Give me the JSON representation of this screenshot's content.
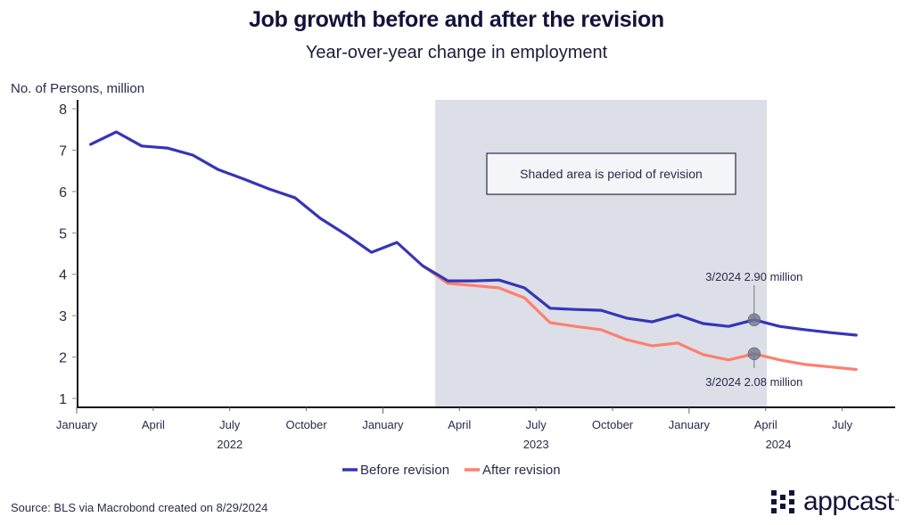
{
  "header": {
    "title": "Job growth before and after the revision",
    "subtitle": "Year-over-year change in employment"
  },
  "footer": {
    "source": "Source: BLS via Macrobond created on 8/29/2024",
    "logo_text": "appcast",
    "logo_tm": "™"
  },
  "colors": {
    "before": "#3535b8",
    "after": "#ff7f6e",
    "shade": "#dcdfe8",
    "axis": "#111111",
    "text": "#2b2b4a"
  },
  "chart_data": {
    "type": "line",
    "title": "Job growth before and after the revision",
    "subtitle": "Year-over-year change in employment",
    "ylabel": "No. of Persons, million",
    "xlabel": "",
    "ylim": [
      0.75,
      8.2
    ],
    "yticks": [
      1,
      2,
      3,
      4,
      5,
      6,
      7,
      8
    ],
    "x": [
      "2022-01",
      "2022-02",
      "2022-03",
      "2022-04",
      "2022-05",
      "2022-06",
      "2022-07",
      "2022-08",
      "2022-09",
      "2022-10",
      "2022-11",
      "2022-12",
      "2023-01",
      "2023-02",
      "2023-03",
      "2023-04",
      "2023-05",
      "2023-06",
      "2023-07",
      "2023-08",
      "2023-09",
      "2023-10",
      "2023-11",
      "2023-12",
      "2024-01",
      "2024-02",
      "2024-03",
      "2024-04",
      "2024-05",
      "2024-06",
      "2024-07"
    ],
    "xticks": [
      {
        "label": "January",
        "month_index": 0
      },
      {
        "label": "April",
        "month_index": 3
      },
      {
        "label": "July",
        "month_index": 6
      },
      {
        "label": "October",
        "month_index": 9
      },
      {
        "label": "January",
        "month_index": 12
      },
      {
        "label": "April",
        "month_index": 15
      },
      {
        "label": "July",
        "month_index": 18
      },
      {
        "label": "October",
        "month_index": 21
      },
      {
        "label": "January",
        "month_index": 24
      },
      {
        "label": "April",
        "month_index": 27
      },
      {
        "label": "July",
        "month_index": 30
      }
    ],
    "year_labels": [
      {
        "label": "2022",
        "month_index": 6
      },
      {
        "label": "2023",
        "month_index": 18
      },
      {
        "label": "2024",
        "month_index": 27.5
      }
    ],
    "series": [
      {
        "name": "Before revision",
        "values": [
          7.14,
          7.44,
          7.1,
          7.05,
          6.88,
          6.53,
          6.3,
          6.06,
          5.85,
          5.35,
          4.96,
          4.53,
          4.77,
          4.21,
          3.84,
          3.84,
          3.86,
          3.67,
          3.18,
          3.15,
          3.13,
          2.94,
          2.85,
          3.02,
          2.81,
          2.74,
          2.9,
          2.74,
          2.66,
          2.59,
          2.53
        ]
      },
      {
        "name": "After revision",
        "values": [
          null,
          null,
          null,
          null,
          null,
          null,
          null,
          null,
          null,
          null,
          null,
          null,
          null,
          4.21,
          3.78,
          3.73,
          3.67,
          3.43,
          2.83,
          2.74,
          2.66,
          2.42,
          2.27,
          2.34,
          2.06,
          1.93,
          2.08,
          1.93,
          1.82,
          1.76,
          1.7
        ]
      }
    ],
    "shaded_region": {
      "start_month_index": 13.5,
      "end_month_index": 26.5,
      "label": "Shaded area is period of revision"
    },
    "annotations": [
      {
        "series": "Before revision",
        "month_index": 26,
        "value": 2.9,
        "text": "3/2024 2.90 million",
        "position": "above"
      },
      {
        "series": "After revision",
        "month_index": 26,
        "value": 2.08,
        "text": "3/2024 2.08 million",
        "position": "below"
      }
    ],
    "legend": {
      "placement": "bottom-center",
      "entries": [
        "Before revision",
        "After revision"
      ]
    },
    "grid": false
  }
}
